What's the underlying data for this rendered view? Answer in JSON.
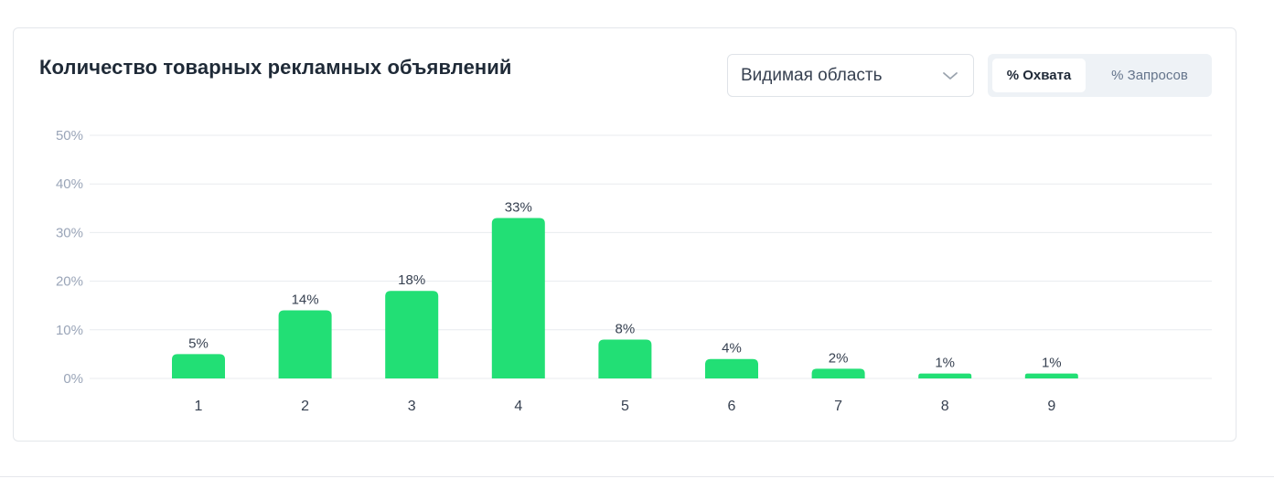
{
  "header": {
    "title": "Количество товарных рекламных объявлений"
  },
  "select": {
    "value": "Видимая область",
    "icon": "chevron-down-icon"
  },
  "toggle": {
    "options": [
      "% Охвата",
      "% Запросов"
    ],
    "active": "% Охвата"
  },
  "colors": {
    "bar": "#22df75",
    "grid": "#e8ebef",
    "accent_bg": "#eef2f6"
  },
  "chart_data": {
    "type": "bar",
    "title": "Количество товарных рекламных объявлений",
    "xlabel": "",
    "ylabel": "",
    "categories": [
      "1",
      "2",
      "3",
      "4",
      "5",
      "6",
      "7",
      "8",
      "9"
    ],
    "values": [
      5,
      14,
      18,
      33,
      8,
      4,
      2,
      1,
      1
    ],
    "data_labels": [
      "5%",
      "14%",
      "18%",
      "33%",
      "8%",
      "4%",
      "2%",
      "1%",
      "1%"
    ],
    "ylim": [
      0,
      50
    ],
    "yticks": [
      0,
      10,
      20,
      30,
      40,
      50
    ],
    "ytick_labels": [
      "0%",
      "10%",
      "20%",
      "30%",
      "40%",
      "50%"
    ],
    "grid": true,
    "legend": "none"
  }
}
